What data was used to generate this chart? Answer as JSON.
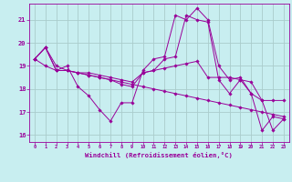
{
  "title": "",
  "xlabel": "Windchill (Refroidissement éolien,°C)",
  "ylabel": "",
  "bg_color": "#c8eef0",
  "line_color": "#990099",
  "grid_color": "#aacccc",
  "xlim": [
    -0.5,
    23.5
  ],
  "ylim": [
    15.7,
    21.7
  ],
  "yticks": [
    16,
    17,
    18,
    19,
    20,
    21
  ],
  "xticks": [
    0,
    1,
    2,
    3,
    4,
    5,
    6,
    7,
    8,
    9,
    10,
    11,
    12,
    13,
    14,
    15,
    16,
    17,
    18,
    19,
    20,
    21,
    22,
    23
  ],
  "series": [
    [
      19.3,
      19.8,
      18.8,
      19.0,
      18.1,
      17.7,
      17.1,
      16.6,
      17.4,
      17.4,
      18.8,
      19.3,
      19.4,
      21.2,
      21.0,
      21.5,
      21.0,
      19.0,
      18.4,
      18.5,
      17.8,
      16.2,
      16.8,
      16.7
    ],
    [
      19.3,
      19.8,
      18.8,
      18.8,
      18.7,
      18.7,
      18.6,
      18.5,
      18.4,
      18.3,
      18.7,
      18.8,
      18.9,
      19.0,
      19.1,
      19.2,
      18.5,
      18.5,
      18.5,
      18.4,
      18.3,
      17.5,
      17.5,
      17.5
    ],
    [
      19.3,
      19.8,
      19.0,
      18.8,
      18.7,
      18.6,
      18.5,
      18.4,
      18.3,
      18.2,
      18.1,
      18.0,
      17.9,
      17.8,
      17.7,
      17.6,
      17.5,
      17.4,
      17.3,
      17.2,
      17.1,
      17.0,
      16.9,
      16.8
    ],
    [
      19.3,
      19.0,
      18.8,
      18.8,
      18.7,
      18.6,
      18.5,
      18.4,
      18.2,
      18.1,
      18.7,
      18.8,
      19.3,
      19.4,
      21.2,
      21.0,
      20.9,
      18.4,
      17.8,
      18.4,
      17.8,
      17.5,
      16.2,
      16.7
    ]
  ]
}
